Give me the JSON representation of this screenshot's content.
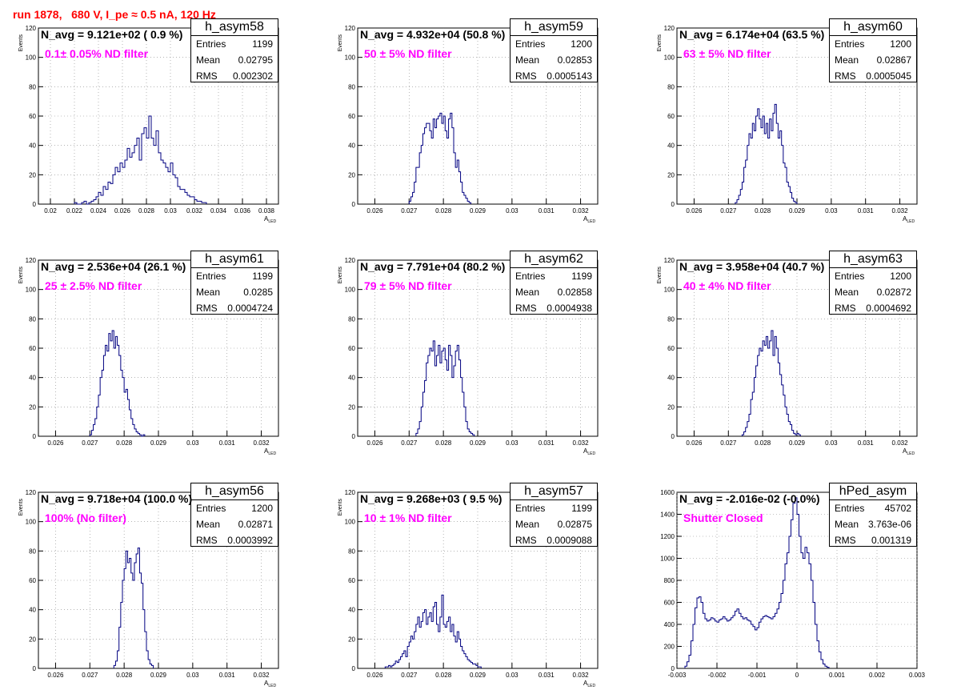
{
  "page": {
    "run_title": "run 1878,   680 V, I_pe ≈ 0.5 nA, 120 Hz",
    "colors": {
      "title": "#ff0000",
      "filter_text": "#ff00ff",
      "histogram": "#000080",
      "grid": "#888888"
    }
  },
  "chart_data": [
    {
      "type": "bar",
      "histtype": "step",
      "grid": true,
      "legend_placement": "top-right",
      "name": "h_asym58",
      "ylabel": "Events",
      "xlabel": "A",
      "xlabel_sub": "LED",
      "xlim": [
        0.019,
        0.039
      ],
      "ylim": [
        0,
        120
      ],
      "xticks": [
        "0.02",
        "0.022",
        "0.024",
        "0.026",
        "0.028",
        "0.03",
        "0.032",
        "0.034",
        "0.036",
        "0.038"
      ],
      "yticks": [
        "0",
        "20",
        "40",
        "60",
        "80",
        "100",
        "120"
      ],
      "stats": {
        "Entries": "1199",
        "Mean": "0.02795",
        "RMS": "0.002302"
      },
      "n_avg": "N_avg = 9.121e+02 ( 0.9 %)",
      "filter": "0.1± 0.05% ND filter",
      "bin_start": 0.022,
      "bin_width": 0.0002,
      "values": [
        1,
        0,
        0,
        1,
        2,
        0,
        1,
        2,
        3,
        5,
        8,
        6,
        12,
        10,
        15,
        14,
        20,
        25,
        22,
        28,
        25,
        30,
        38,
        32,
        35,
        40,
        45,
        30,
        48,
        52,
        45,
        60,
        45,
        40,
        50,
        35,
        30,
        28,
        25,
        22,
        28,
        20,
        18,
        12,
        10,
        10,
        8,
        6,
        5,
        5,
        3,
        2,
        2,
        1,
        1
      ]
    },
    {
      "type": "bar",
      "histtype": "step",
      "grid": true,
      "legend_placement": "top-right",
      "name": "h_asym59",
      "ylabel": "Events",
      "xlabel": "A",
      "xlabel_sub": "LED",
      "xlim": [
        0.0255,
        0.0325
      ],
      "ylim": [
        0,
        120
      ],
      "xticks": [
        "0.026",
        "0.027",
        "0.028",
        "0.029",
        "0.03",
        "0.031",
        "0.032"
      ],
      "yticks": [
        "0",
        "20",
        "40",
        "60",
        "80",
        "100",
        "120"
      ],
      "stats": {
        "Entries": "1200",
        "Mean": "0.02853",
        "RMS": "0.0005143"
      },
      "n_avg": "N_avg = 4.932e+04 (50.8 %)",
      "filter": "50 ± 5% ND filter",
      "bin_start": 0.027,
      "bin_width": 5e-05,
      "values": [
        2,
        5,
        8,
        15,
        25,
        25,
        35,
        40,
        48,
        52,
        55,
        55,
        50,
        45,
        58,
        52,
        58,
        60,
        62,
        55,
        60,
        50,
        45,
        58,
        62,
        52,
        35,
        25,
        30,
        22,
        15,
        8,
        6,
        4,
        2,
        1
      ]
    },
    {
      "type": "bar",
      "histtype": "step",
      "grid": true,
      "legend_placement": "top-right",
      "name": "h_asym60",
      "ylabel": "Events",
      "xlabel": "A",
      "xlabel_sub": "LED",
      "xlim": [
        0.0255,
        0.0325
      ],
      "ylim": [
        0,
        120
      ],
      "xticks": [
        "0.026",
        "0.027",
        "0.028",
        "0.029",
        "0.03",
        "0.031",
        "0.032"
      ],
      "yticks": [
        "0",
        "20",
        "40",
        "60",
        "80",
        "100",
        "120"
      ],
      "stats": {
        "Entries": "1200",
        "Mean": "0.02867",
        "RMS": "0.0005045"
      },
      "n_avg": "N_avg = 6.174e+04 (63.5 %)",
      "filter": "63 ± 5% ND filter",
      "bin_start": 0.0272,
      "bin_width": 5e-05,
      "values": [
        1,
        3,
        6,
        10,
        15,
        25,
        30,
        40,
        48,
        45,
        55,
        50,
        60,
        65,
        58,
        52,
        60,
        48,
        55,
        45,
        58,
        50,
        62,
        68,
        55,
        45,
        50,
        40,
        28,
        25,
        15,
        12,
        8,
        4,
        2,
        1
      ]
    },
    {
      "type": "bar",
      "histtype": "step",
      "grid": true,
      "legend_placement": "top-right",
      "name": "h_asym61",
      "ylabel": "Events",
      "xlabel": "A",
      "xlabel_sub": "LED",
      "xlim": [
        0.0255,
        0.0325
      ],
      "ylim": [
        0,
        120
      ],
      "xticks": [
        "0.026",
        "0.027",
        "0.028",
        "0.029",
        "0.03",
        "0.031",
        "0.032"
      ],
      "yticks": [
        "0",
        "20",
        "40",
        "60",
        "80",
        "100",
        "120"
      ],
      "stats": {
        "Entries": "1199",
        "Mean": "0.0285",
        "RMS": "0.0004724"
      },
      "n_avg": "N_avg = 2.536e+04 (26.1 %)",
      "filter": "25 ± 2.5% ND filter",
      "bin_start": 0.027,
      "bin_width": 5e-05,
      "values": [
        1,
        4,
        8,
        12,
        20,
        28,
        40,
        45,
        55,
        62,
        58,
        70,
        65,
        72,
        60,
        68,
        62,
        55,
        45,
        40,
        30,
        32,
        25,
        18,
        12,
        8,
        5,
        3,
        2,
        1,
        0,
        1
      ]
    },
    {
      "type": "bar",
      "histtype": "step",
      "grid": true,
      "legend_placement": "top-right",
      "name": "h_asym62",
      "ylabel": "Events",
      "xlabel": "A",
      "xlabel_sub": "LED",
      "xlim": [
        0.0255,
        0.0325
      ],
      "ylim": [
        0,
        120
      ],
      "xticks": [
        "0.026",
        "0.027",
        "0.028",
        "0.029",
        "0.03",
        "0.031",
        "0.032"
      ],
      "yticks": [
        "0",
        "20",
        "40",
        "60",
        "80",
        "100",
        "120"
      ],
      "stats": {
        "Entries": "1199",
        "Mean": "0.02858",
        "RMS": "0.0004938"
      },
      "n_avg": "N_avg = 7.791e+04 (80.2 %)",
      "filter": "79 ± 5% ND filter",
      "bin_start": 0.0272,
      "bin_width": 5e-05,
      "values": [
        2,
        5,
        10,
        20,
        30,
        38,
        50,
        55,
        60,
        58,
        65,
        48,
        55,
        62,
        50,
        58,
        60,
        52,
        45,
        62,
        55,
        40,
        48,
        58,
        62,
        52,
        40,
        30,
        20,
        10,
        5,
        3,
        2,
        1
      ]
    },
    {
      "type": "bar",
      "histtype": "step",
      "grid": true,
      "legend_placement": "top-right",
      "name": "h_asym63",
      "ylabel": "Events",
      "xlabel": "A",
      "xlabel_sub": "LED",
      "xlim": [
        0.0255,
        0.0325
      ],
      "ylim": [
        0,
        120
      ],
      "xticks": [
        "0.026",
        "0.027",
        "0.028",
        "0.029",
        "0.03",
        "0.031",
        "0.032"
      ],
      "yticks": [
        "0",
        "20",
        "40",
        "60",
        "80",
        "100",
        "120"
      ],
      "stats": {
        "Entries": "1200",
        "Mean": "0.02872",
        "RMS": "0.0004692"
      },
      "n_avg": "N_avg = 3.958e+04 (40.7 %)",
      "filter": "40 ± 4% ND filter",
      "bin_start": 0.0274,
      "bin_width": 5e-05,
      "values": [
        1,
        3,
        6,
        10,
        15,
        25,
        30,
        40,
        48,
        55,
        60,
        58,
        65,
        62,
        68,
        60,
        65,
        72,
        55,
        68,
        60,
        50,
        42,
        35,
        28,
        20,
        15,
        10,
        8,
        4,
        2,
        1,
        2,
        1
      ]
    },
    {
      "type": "bar",
      "histtype": "step",
      "grid": true,
      "legend_placement": "top-right",
      "name": "h_asym56",
      "ylabel": "Events",
      "xlabel": "A",
      "xlabel_sub": "LED",
      "xlim": [
        0.0255,
        0.0325
      ],
      "ylim": [
        0,
        120
      ],
      "xticks": [
        "0.026",
        "0.027",
        "0.028",
        "0.029",
        "0.03",
        "0.031",
        "0.032"
      ],
      "yticks": [
        "0",
        "20",
        "40",
        "60",
        "80",
        "100",
        "120"
      ],
      "stats": {
        "Entries": "1200",
        "Mean": "0.02871",
        "RMS": "0.0003992"
      },
      "n_avg": "N_avg = 9.718e+04 (100.0 %)",
      "filter": "100% (No filter)",
      "bin_start": 0.0277,
      "bin_width": 5e-05,
      "values": [
        2,
        5,
        12,
        28,
        45,
        60,
        68,
        80,
        72,
        75,
        65,
        60,
        72,
        78,
        82,
        65,
        58,
        40,
        25,
        12,
        6,
        3,
        2
      ]
    },
    {
      "type": "bar",
      "histtype": "step",
      "grid": true,
      "legend_placement": "top-right",
      "name": "h_asym57",
      "ylabel": "Events",
      "xlabel": "A",
      "xlabel_sub": "LED",
      "xlim": [
        0.0255,
        0.0325
      ],
      "ylim": [
        0,
        120
      ],
      "xticks": [
        "0.026",
        "0.027",
        "0.028",
        "0.029",
        "0.03",
        "0.031",
        "0.032"
      ],
      "yticks": [
        "0",
        "20",
        "40",
        "60",
        "80",
        "100",
        "120"
      ],
      "stats": {
        "Entries": "1199",
        "Mean": "0.02875",
        "RMS": "0.0009088"
      },
      "n_avg": "N_avg = 9.268e+03 ( 9.5 %)",
      "filter": "10 ± 1% ND filter",
      "bin_start": 0.0263,
      "bin_width": 5e-05,
      "values": [
        1,
        1,
        2,
        1,
        2,
        3,
        5,
        4,
        6,
        8,
        10,
        12,
        8,
        15,
        18,
        22,
        20,
        25,
        30,
        35,
        28,
        32,
        38,
        40,
        30,
        35,
        38,
        32,
        42,
        45,
        30,
        25,
        35,
        50,
        30,
        28,
        32,
        35,
        25,
        30,
        22,
        18,
        25,
        20,
        15,
        12,
        10,
        8,
        6,
        5,
        4,
        3,
        3,
        2,
        1,
        1
      ]
    },
    {
      "type": "bar",
      "histtype": "step",
      "grid": true,
      "legend_placement": "top-right",
      "name": "hPed_asym",
      "ylabel": "",
      "xlabel": "",
      "xlabel_sub": "",
      "xlim": [
        -0.003,
        0.003
      ],
      "ylim": [
        0,
        1600
      ],
      "xticks": [
        "-0.003",
        "-0.002",
        "-0.001",
        "0",
        "0.001",
        "0.002",
        "0.003"
      ],
      "yticks": [
        "0",
        "200",
        "400",
        "600",
        "800",
        "1000",
        "1200",
        "1400",
        "1600"
      ],
      "stats": {
        "Entries": "45702",
        "Mean": "3.763e-06",
        "RMS": "0.001319"
      },
      "n_avg": "N_avg = -2.016e-02 (-0.0%)",
      "filter": "Shutter Closed",
      "bin_start": -0.0028,
      "bin_width": 5e-05,
      "values": [
        20,
        60,
        120,
        250,
        400,
        550,
        640,
        650,
        600,
        500,
        450,
        430,
        440,
        460,
        450,
        430,
        420,
        440,
        450,
        470,
        450,
        430,
        440,
        460,
        480,
        520,
        540,
        500,
        470,
        450,
        460,
        440,
        430,
        400,
        380,
        350,
        370,
        420,
        450,
        470,
        480,
        470,
        460,
        450,
        470,
        500,
        540,
        600,
        680,
        800,
        950,
        1050,
        1200,
        1350,
        1500,
        1550,
        1400,
        1200,
        1050,
        1000,
        1100,
        1050,
        950,
        800,
        600,
        400,
        250,
        150,
        80,
        40,
        20,
        10
      ]
    }
  ]
}
